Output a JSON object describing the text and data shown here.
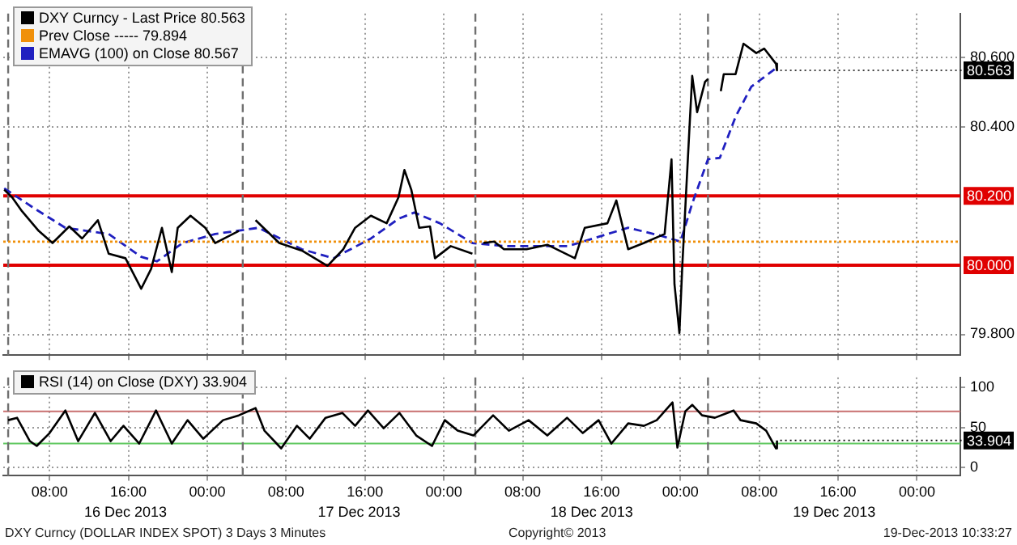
{
  "chart_data": [
    {
      "type": "line",
      "legend": "top left",
      "grid": true,
      "marker": "none",
      "tick_labels": "y",
      "xlim": [
        "2013-12-16T03:18",
        "2013-12-20T04:24"
      ],
      "xticks": [
        {
          "value": "2013-12-16T08:00",
          "label": null
        },
        {
          "value": "2013-12-16T16:00",
          "label": null
        },
        {
          "value": "2013-12-17T00:00",
          "label": null
        },
        {
          "value": "2013-12-17T08:00",
          "label": null
        },
        {
          "value": "2013-12-17T16:00",
          "label": null
        },
        {
          "value": "2013-12-18T00:00",
          "label": null
        },
        {
          "value": "2013-12-18T08:00",
          "label": null
        },
        {
          "value": "2013-12-18T16:00",
          "label": null
        },
        {
          "value": "2013-12-19T00:00",
          "label": null
        },
        {
          "value": "2013-12-19T08:00",
          "label": null
        },
        {
          "value": "2013-12-19T16:00",
          "label": null
        },
        {
          "value": "2013-12-20T00:00",
          "label": null
        }
      ],
      "ylim": [
        79.74,
        80.727
      ],
      "yticks": [
        {
          "value": 79.8,
          "label": "79.800"
        },
        {
          "value": 80.4,
          "label": "80.400"
        },
        {
          "value": 80.6,
          "label": "80.600"
        }
      ],
      "series": [
        {
          "name": "DXY Curncy - Last Price 80.563",
          "color": "#000000",
          "line_style": "solid",
          "x": [
            "2013-12-16T03:24",
            "2013-12-16T04:12",
            "2013-12-16T05:12",
            "2013-12-16T06:54",
            "2013-12-16T08:18",
            "2013-12-16T10:00",
            "2013-12-16T11:18",
            "2013-12-16T12:54",
            "2013-12-16T14:00",
            "2013-12-16T15:42",
            "2013-12-16T17:18",
            "2013-12-16T18:18",
            "2013-12-16T19:24",
            "2013-12-16T20:24",
            "2013-12-16T21:00",
            "2013-12-16T22:18",
            "2013-12-16T23:48",
            "2013-12-17T00:48",
            "2013-12-17T03:12",
            "2013-12-17T04:00",
            "2013-12-17T04:54",
            "2013-12-17T07:18",
            "2013-12-17T09:36",
            "2013-12-17T12:12",
            "2013-12-17T13:48",
            "2013-12-17T15:00",
            "2013-12-17T16:36",
            "2013-12-17T18:12",
            "2013-12-17T19:24",
            "2013-12-17T20:00",
            "2013-12-17T20:42",
            "2013-12-17T21:30",
            "2013-12-17T22:36",
            "2013-12-17T23:06",
            "2013-12-18T00:42",
            "2013-12-18T02:54",
            "2013-12-18T03:30",
            "2013-12-18T04:00",
            "2013-12-18T05:06",
            "2013-12-18T06:06",
            "2013-12-18T08:24",
            "2013-12-18T10:30",
            "2013-12-18T13:18",
            "2013-12-18T14:18",
            "2013-12-18T16:36",
            "2013-12-18T17:30",
            "2013-12-18T18:42",
            "2013-12-18T20:18",
            "2013-12-18T22:24",
            "2013-12-18T23:06",
            "2013-12-18T23:24",
            "2013-12-18T23:54",
            "2013-12-19T00:12",
            "2013-12-19T00:54",
            "2013-12-19T01:12",
            "2013-12-19T01:42",
            "2013-12-19T02:30",
            "2013-12-19T02:48",
            "2013-12-19T03:24",
            "2013-12-19T04:06",
            "2013-12-19T04:24",
            "2013-12-19T05:36",
            "2013-12-19T06:24",
            "2013-12-19T07:42",
            "2013-12-19T08:30",
            "2013-12-19T09:42",
            "2013-12-19T09:48"
          ],
          "values": [
            80.218,
            80.196,
            80.156,
            80.099,
            80.064,
            80.112,
            80.077,
            80.13,
            80.033,
            80.02,
            79.932,
            79.989,
            80.108,
            79.98,
            80.108,
            80.143,
            80.108,
            80.064,
            80.099,
            null,
            80.13,
            80.064,
            80.042,
            79.998,
            80.046,
            80.108,
            80.143,
            80.121,
            80.196,
            80.275,
            80.218,
            80.108,
            80.112,
            80.02,
            80.055,
            80.033,
            null,
            80.064,
            80.068,
            80.046,
            80.046,
            80.059,
            80.02,
            80.108,
            80.121,
            80.187,
            80.046,
            80.064,
            80.09,
            80.306,
            79.945,
            79.804,
            80.002,
            80.385,
            80.547,
            80.442,
            80.53,
            80.538,
            null,
            80.503,
            80.552,
            80.552,
            80.64,
            80.613,
            80.626,
            80.582,
            80.563
          ],
          "value_labels": [
            null,
            null,
            null,
            null,
            null,
            null,
            null,
            null,
            null,
            null,
            null,
            null,
            null,
            null,
            null,
            null,
            null,
            null,
            null,
            null,
            null,
            null,
            null,
            null,
            null,
            null,
            null,
            null,
            null,
            null,
            null,
            null,
            null,
            null,
            null,
            null,
            null,
            null,
            null,
            null,
            null,
            null,
            null,
            null,
            null,
            null,
            null,
            null,
            null,
            null,
            null,
            null,
            null,
            null,
            null,
            null,
            null,
            null,
            null,
            null,
            null,
            null,
            null,
            null,
            null,
            null,
            "80.563"
          ]
        },
        {
          "name": "Prev Close ----- 79.894",
          "color": "#f0900a",
          "line_style": "dotted",
          "x": [
            "2013-12-16T03:18",
            "2013-12-20T04:24"
          ],
          "values": [
            80.068,
            80.068
          ]
        },
        {
          "name": "EMAVG (100) on Close 80.567",
          "color": "#2020c0",
          "line_style": "dashed",
          "x": [
            "2013-12-16T03:24",
            "2013-12-16T06:24",
            "2013-12-16T09:36",
            "2013-12-16T14:00",
            "2013-12-16T17:18",
            "2013-12-16T18:54",
            "2013-12-16T21:30",
            "2013-12-17T00:48",
            "2013-12-17T05:12",
            "2013-12-17T09:36",
            "2013-12-17T12:48",
            "2013-12-17T16:36",
            "2013-12-17T19:24",
            "2013-12-17T21:00",
            "2013-12-17T23:36",
            "2013-12-18T02:54",
            "2013-12-18T06:06",
            "2013-12-18T12:36",
            "2013-12-18T18:42",
            "2013-12-18T21:54",
            "2013-12-19T00:00",
            "2013-12-19T01:12",
            "2013-12-19T02:48",
            "2013-12-19T04:00",
            "2013-12-19T05:36",
            "2013-12-19T07:12",
            "2013-12-19T09:42"
          ],
          "values": [
            80.222,
            80.165,
            80.108,
            80.09,
            80.024,
            80.011,
            80.064,
            80.09,
            80.108,
            80.046,
            80.02,
            80.077,
            80.134,
            80.152,
            80.121,
            80.064,
            80.055,
            80.055,
            80.108,
            80.086,
            80.068,
            80.178,
            80.306,
            80.31,
            80.429,
            80.516,
            80.569
          ]
        }
      ],
      "ref_lines": [
        {
          "axis": "y",
          "value": 80.2,
          "label": "80.200",
          "color": "#e00000"
        },
        {
          "axis": "y",
          "value": 80.0,
          "label": "80.000",
          "color": "#e00000"
        },
        {
          "axis": "x",
          "value": "2013-12-16T03:48",
          "color": "#707070",
          "line_style": "dashed"
        },
        {
          "axis": "x",
          "value": "2013-12-17T03:36",
          "color": "#707070",
          "line_style": "dashed"
        },
        {
          "axis": "x",
          "value": "2013-12-18T03:12",
          "color": "#707070",
          "line_style": "dashed"
        },
        {
          "axis": "x",
          "value": "2013-12-19T02:48",
          "color": "#707070",
          "line_style": "dashed"
        }
      ]
    },
    {
      "type": "line",
      "legend": "top left",
      "grid": true,
      "marker": "none",
      "xlim": [
        "2013-12-16T03:18",
        "2013-12-20T04:24"
      ],
      "xticks": [
        {
          "value": "2013-12-16T08:00",
          "label": "08:00"
        },
        {
          "value": "2013-12-16T16:00",
          "label": "16:00"
        },
        {
          "value": "2013-12-17T00:00",
          "label": "00:00"
        },
        {
          "value": "2013-12-17T08:00",
          "label": "08:00"
        },
        {
          "value": "2013-12-17T16:00",
          "label": "16:00"
        },
        {
          "value": "2013-12-18T00:00",
          "label": "00:00"
        },
        {
          "value": "2013-12-18T08:00",
          "label": "08:00"
        },
        {
          "value": "2013-12-18T16:00",
          "label": "16:00"
        },
        {
          "value": "2013-12-19T00:00",
          "label": "00:00"
        },
        {
          "value": "2013-12-19T08:00",
          "label": "08:00"
        },
        {
          "value": "2013-12-19T16:00",
          "label": "16:00"
        },
        {
          "value": "2013-12-20T00:00",
          "label": "00:00"
        }
      ],
      "ylim": [
        -10,
        112
      ],
      "yticks": [
        0,
        50,
        100
      ],
      "series": [
        {
          "name": "RSI (14) on Close (DXY) 33.904",
          "color": "#000000",
          "line_style": "solid",
          "x": [
            "2013-12-16T03:48",
            "2013-12-16T04:42",
            "2013-12-16T06:00",
            "2013-12-16T06:42",
            "2013-12-16T08:00",
            "2013-12-16T09:36",
            "2013-12-16T10:54",
            "2013-12-16T12:36",
            "2013-12-16T14:12",
            "2013-12-16T15:30",
            "2013-12-16T17:06",
            "2013-12-16T18:48",
            "2013-12-16T20:24",
            "2013-12-16T22:00",
            "2013-12-16T23:36",
            "2013-12-17T01:36",
            "2013-12-17T03:12",
            "2013-12-17T04:54",
            "2013-12-17T05:48",
            "2013-12-17T07:30",
            "2013-12-17T09:06",
            "2013-12-17T10:24",
            "2013-12-17T12:00",
            "2013-12-17T13:42",
            "2013-12-17T15:00",
            "2013-12-17T16:18",
            "2013-12-17T17:54",
            "2013-12-17T19:30",
            "2013-12-17T21:12",
            "2013-12-17T22:48",
            "2013-12-18T00:06",
            "2013-12-18T01:24",
            "2013-12-18T03:00",
            "2013-12-18T05:00",
            "2013-12-18T06:36",
            "2013-12-18T08:36",
            "2013-12-18T10:30",
            "2013-12-18T12:30",
            "2013-12-18T14:06",
            "2013-12-18T15:42",
            "2013-12-18T17:00",
            "2013-12-18T18:42",
            "2013-12-18T20:18",
            "2013-12-18T21:36",
            "2013-12-18T23:12",
            "2013-12-18T23:42",
            "2013-12-19T00:30",
            "2013-12-19T01:12",
            "2013-12-19T02:12",
            "2013-12-19T03:30",
            "2013-12-19T05:24",
            "2013-12-19T06:06",
            "2013-12-19T07:42",
            "2013-12-19T08:42",
            "2013-12-19T09:42",
            "2013-12-19T09:48"
          ],
          "values": [
            59,
            62,
            33,
            27,
            43,
            71,
            33,
            68,
            33,
            52,
            30,
            71,
            30,
            59,
            36,
            59,
            65,
            74,
            46,
            24,
            52,
            36,
            62,
            68,
            52,
            71,
            49,
            68,
            40,
            27,
            59,
            46,
            40,
            65,
            46,
            59,
            40,
            62,
            43,
            59,
            30,
            55,
            52,
            59,
            81,
            25,
            70,
            78,
            65,
            62,
            71,
            59,
            55,
            46,
            24,
            33.904
          ],
          "value_labels": [
            null,
            null,
            null,
            null,
            null,
            null,
            null,
            null,
            null,
            null,
            null,
            null,
            null,
            null,
            null,
            null,
            null,
            null,
            null,
            null,
            null,
            null,
            null,
            null,
            null,
            null,
            null,
            null,
            null,
            null,
            null,
            null,
            null,
            null,
            null,
            null,
            null,
            null,
            null,
            null,
            null,
            null,
            null,
            null,
            null,
            null,
            null,
            null,
            null,
            null,
            null,
            null,
            null,
            null,
            null,
            "33.904"
          ]
        }
      ],
      "ref_lines": [
        {
          "axis": "y",
          "value": 70,
          "color": "#c87070"
        },
        {
          "axis": "y",
          "value": 30,
          "color": "#60c860"
        },
        {
          "axis": "x",
          "value": "2013-12-16T03:48",
          "color": "#707070",
          "line_style": "dashed"
        },
        {
          "axis": "x",
          "value": "2013-12-17T03:36",
          "color": "#707070",
          "line_style": "dashed"
        },
        {
          "axis": "x",
          "value": "2013-12-18T03:12",
          "color": "#707070",
          "line_style": "dashed"
        },
        {
          "axis": "x",
          "value": "2013-12-19T02:48",
          "color": "#707070",
          "line_style": "dashed"
        }
      ],
      "annotations": [
        "16 Dec 2013",
        "17 Dec 2013",
        "18 Dec 2013",
        "19 Dec 2013",
        "DXY Curncy (DOLLAR INDEX SPOT) 3 Days 3 Minutes",
        "Copyright© 2013",
        "19-Dec-2013 10:33:27"
      ]
    }
  ]
}
